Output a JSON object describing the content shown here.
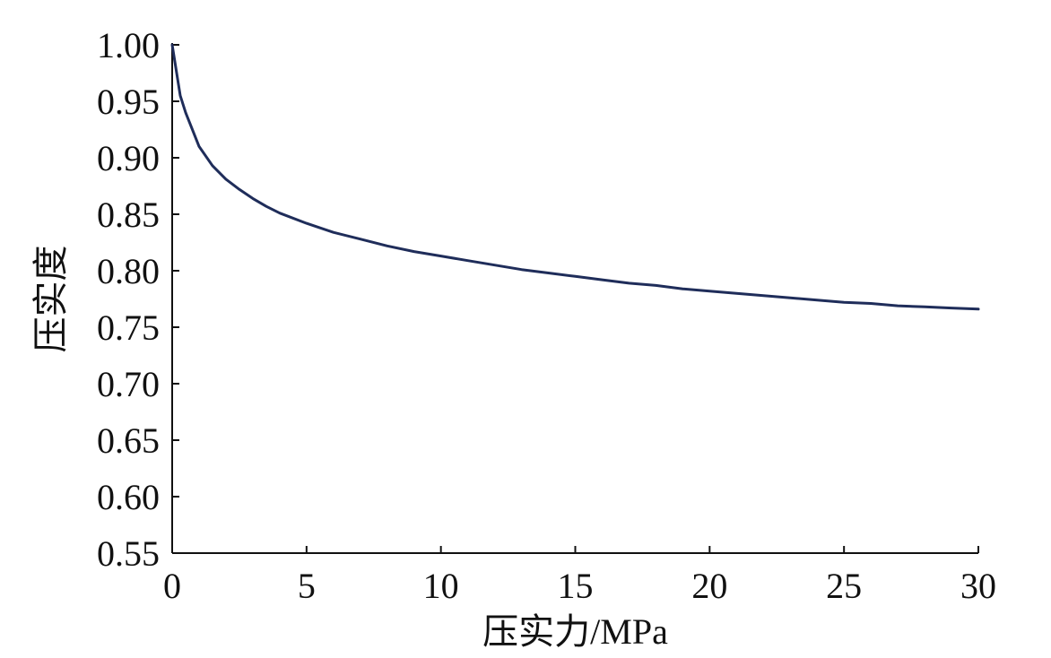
{
  "chart_data": {
    "type": "line",
    "xlabel": "压实力/MPa",
    "ylabel": "压实度",
    "xlim": [
      0,
      30
    ],
    "ylim": [
      0.55,
      1.0
    ],
    "x_ticks": [
      "0",
      "5",
      "10",
      "15",
      "20",
      "25",
      "30"
    ],
    "x_tick_values": [
      0,
      5,
      10,
      15,
      20,
      25,
      30
    ],
    "y_ticks": [
      "0.55",
      "0.60",
      "0.65",
      "0.70",
      "0.75",
      "0.80",
      "0.85",
      "0.90",
      "0.95",
      "1.00"
    ],
    "y_tick_values": [
      0.55,
      0.6,
      0.65,
      0.7,
      0.75,
      0.8,
      0.85,
      0.9,
      0.95,
      1.0
    ],
    "grid": false,
    "legend": "none",
    "series": [
      {
        "color": "#1f2d5a",
        "x": [
          0,
          0.1,
          0.2,
          0.3,
          0.5,
          0.7,
          1.0,
          1.5,
          2.0,
          2.5,
          3.0,
          3.5,
          4.0,
          5.0,
          6.0,
          7.0,
          8.0,
          9.0,
          10.0,
          11.0,
          12.0,
          13.0,
          14.0,
          15.0,
          16.0,
          17.0,
          18.0,
          19.0,
          20.0,
          21.0,
          22.0,
          23.0,
          24.0,
          25.0,
          26.0,
          27.0,
          28.0,
          29.0,
          30.0
        ],
        "y": [
          1.0,
          0.985,
          0.97,
          0.955,
          0.94,
          0.928,
          0.91,
          0.893,
          0.881,
          0.872,
          0.864,
          0.857,
          0.851,
          0.842,
          0.834,
          0.828,
          0.822,
          0.817,
          0.813,
          0.809,
          0.805,
          0.801,
          0.798,
          0.795,
          0.792,
          0.789,
          0.787,
          0.784,
          0.782,
          0.78,
          0.778,
          0.776,
          0.774,
          0.772,
          0.771,
          0.769,
          0.768,
          0.767,
          0.766
        ]
      }
    ]
  }
}
